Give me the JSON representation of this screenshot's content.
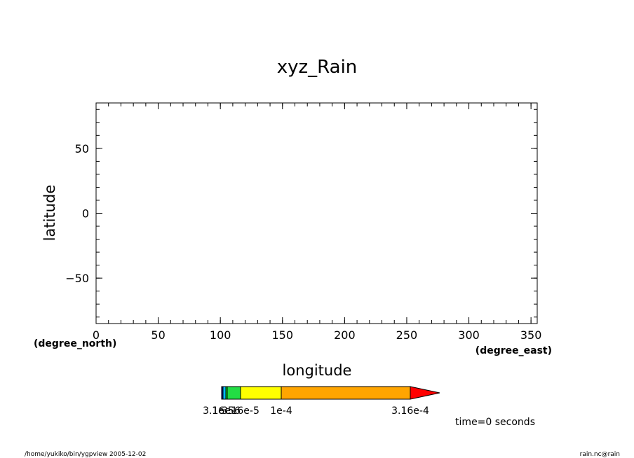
{
  "chart_data": {
    "type": "heatmap",
    "title": "xyz_Rain",
    "xlabel": "longitude",
    "ylabel": "latitude",
    "x_units": "(degree_east)",
    "y_units": "(degree_north)",
    "xlim": [
      0,
      355
    ],
    "ylim": [
      -85,
      85
    ],
    "x_ticks": [
      0,
      50,
      100,
      150,
      200,
      250,
      300,
      350
    ],
    "x_tick_labels": [
      "0",
      "50",
      "100",
      "150",
      "200",
      "250",
      "300",
      "350"
    ],
    "y_ticks": [
      50,
      0,
      -50
    ],
    "y_tick_labels": [
      "50",
      "0",
      "−50"
    ],
    "x_minor_step": 10,
    "y_minor_step": 10,
    "grid": false,
    "data": [],
    "colorbar": {
      "segments": [
        {
          "color": "#000080",
          "from": 3.16e-06,
          "to": 1e-05
        },
        {
          "color": "#00bfff",
          "from": 1e-05,
          "to": 3.16e-05
        },
        {
          "color": "#00ff00",
          "from": 3.16e-05,
          "to": 3.16e-05
        },
        {
          "color": "#22dd44",
          "from": 3.16e-05,
          "to": 3.16e-05
        },
        {
          "color": "#ffff00",
          "from": 3.16e-05,
          "to": 0.0001
        },
        {
          "color": "#ffa500",
          "from": 0.0001,
          "to": 0.000316
        },
        {
          "color": "#ff0000",
          "from": 0.000316,
          "to": null
        }
      ],
      "labels": [
        {
          "text": "3.16e-6",
          "value": 3.16e-06
        },
        {
          "text": "1e-5",
          "value": 1e-05
        },
        {
          "text": "3.16e-5",
          "value": 3.16e-05
        },
        {
          "text": "1e-4",
          "value": 0.0001
        },
        {
          "text": "3.16e-4",
          "value": 0.000316
        }
      ]
    }
  },
  "annotations": {
    "time": "time=0 seconds",
    "footer_left": "/home/yukiko/bin/ygpview   2005-12-02",
    "footer_right": "rain.nc@rain"
  }
}
